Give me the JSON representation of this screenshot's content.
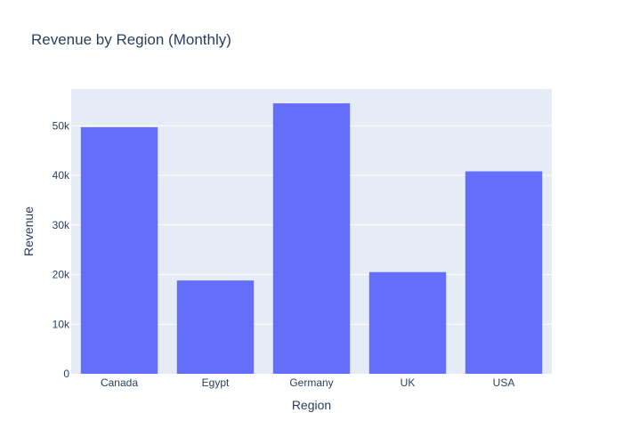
{
  "chart_data": {
    "type": "bar",
    "title": "Revenue by Region (Monthly)",
    "xlabel": "Region",
    "ylabel": "Revenue",
    "categories": [
      "Canada",
      "Egypt",
      "Germany",
      "UK",
      "USA"
    ],
    "values": [
      49700,
      18800,
      54500,
      20500,
      40800
    ],
    "ylim": [
      0,
      57400
    ],
    "y_ticks": [
      0,
      10000,
      20000,
      30000,
      40000,
      50000
    ],
    "y_tick_labels": [
      "0",
      "10k",
      "20k",
      "30k",
      "40k",
      "50k"
    ],
    "grid": true,
    "legend": false,
    "colors": {
      "bar": "#636efa",
      "plot_background": "#e5ecf6",
      "grid": "#ffffff",
      "text": "#2a3f5f"
    }
  }
}
